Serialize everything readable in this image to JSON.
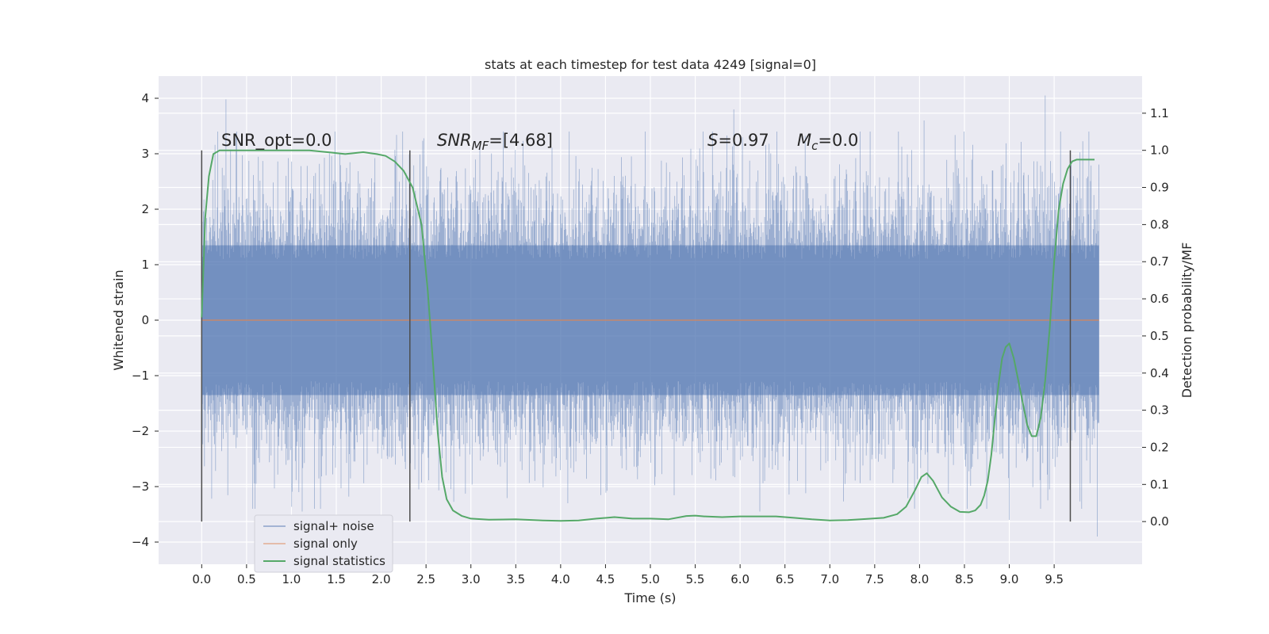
{
  "chart_data": {
    "type": "line",
    "title": "stats at each timestep for test data 4249 [signal=0]",
    "xlabel": "Time (s)",
    "ylabel": "Whitened strain",
    "y2label": "Detection probability/MF",
    "xlim": [
      -0.48,
      10.48
    ],
    "ylim": [
      -4.4,
      4.4
    ],
    "y2lim": [
      -0.115,
      1.2
    ],
    "x_ticks": [
      "0.0",
      "0.5",
      "1.0",
      "1.5",
      "2.0",
      "2.5",
      "3.0",
      "3.5",
      "4.0",
      "4.5",
      "5.0",
      "5.5",
      "6.0",
      "6.5",
      "7.0",
      "7.5",
      "8.0",
      "8.5",
      "9.0",
      "9.5"
    ],
    "y_ticks": [
      "4",
      "3",
      "2",
      "1",
      "0",
      "−1",
      "−2",
      "−3",
      "−4"
    ],
    "y2_ticks": [
      "1.1",
      "1.0",
      "0.9",
      "0.8",
      "0.7",
      "0.6",
      "0.5",
      "0.4",
      "0.3",
      "0.2",
      "0.1",
      "0.0"
    ],
    "grid": true,
    "legend_position": "lower-left",
    "colors": {
      "background": "#eaeaf2",
      "grid": "#ffffff",
      "noise": "#4c72b0",
      "signal_only": "#dd8452",
      "statistics": "#55a868",
      "marker_lines": "#4d4d4d"
    },
    "annotations": {
      "snr_opt": "SNR_opt=0.0",
      "snr_mf_symbol": "SNR",
      "snr_mf_sub": "MF",
      "snr_mf_value": "=[4.68]",
      "s_symbol": "S",
      "s_value": "=0.97",
      "mc_symbol": "M",
      "mc_sub": "c",
      "mc_value": "=0.0"
    },
    "vertical_markers_x": [
      0.0,
      2.32,
      9.68
    ],
    "marker_range_y2": [
      0.0,
      1.0
    ],
    "series": [
      {
        "name": "signal+ noise",
        "color": "#4c72b0",
        "x_range": [
          0.0,
          10.0
        ],
        "band": [
          -1.35,
          1.35
        ],
        "sample_extremes": [
          {
            "x": 0.27,
            "y": 3.98
          },
          {
            "x": 1.12,
            "y": -3.45
          },
          {
            "x": 4.08,
            "y": -3.3
          },
          {
            "x": 5.93,
            "y": 3.8
          },
          {
            "x": 6.22,
            "y": -3.45
          },
          {
            "x": 8.05,
            "y": 3.6
          },
          {
            "x": 9.0,
            "y": -3.6
          },
          {
            "x": 9.4,
            "y": 4.05
          },
          {
            "x": 9.98,
            "y": -3.9
          }
        ]
      },
      {
        "name": "signal only",
        "color": "#dd8452",
        "x": [
          0.0,
          10.0
        ],
        "y": [
          0.0,
          0.0
        ]
      },
      {
        "name": "signal statistics",
        "color": "#55a868",
        "axis": "right",
        "x": [
          0.0,
          0.04,
          0.08,
          0.13,
          0.2,
          0.3,
          0.5,
          0.8,
          1.0,
          1.2,
          1.4,
          1.6,
          1.8,
          1.95,
          2.05,
          2.15,
          2.25,
          2.35,
          2.45,
          2.52,
          2.58,
          2.63,
          2.68,
          2.73,
          2.8,
          2.9,
          3.0,
          3.2,
          3.5,
          3.8,
          4.0,
          4.2,
          4.4,
          4.6,
          4.8,
          5.0,
          5.2,
          5.4,
          5.5,
          5.6,
          5.8,
          6.0,
          6.2,
          6.4,
          6.6,
          6.8,
          7.0,
          7.2,
          7.4,
          7.6,
          7.75,
          7.85,
          7.95,
          8.02,
          8.08,
          8.15,
          8.25,
          8.35,
          8.45,
          8.55,
          8.62,
          8.68,
          8.72,
          8.76,
          8.8,
          8.84,
          8.88,
          8.92,
          8.96,
          9.0,
          9.05,
          9.1,
          9.15,
          9.2,
          9.25,
          9.3,
          9.35,
          9.4,
          9.45,
          9.5,
          9.55,
          9.6,
          9.65,
          9.7,
          9.75,
          9.8,
          9.85,
          9.9,
          9.95
        ],
        "y": [
          0.55,
          0.82,
          0.93,
          0.99,
          1.0,
          1.0,
          1.0,
          1.0,
          1.0,
          1.0,
          0.995,
          0.99,
          0.995,
          0.99,
          0.985,
          0.97,
          0.945,
          0.9,
          0.8,
          0.62,
          0.42,
          0.24,
          0.12,
          0.06,
          0.03,
          0.015,
          0.008,
          0.005,
          0.006,
          0.003,
          0.002,
          0.003,
          0.008,
          0.012,
          0.008,
          0.008,
          0.006,
          0.015,
          0.016,
          0.014,
          0.012,
          0.014,
          0.014,
          0.014,
          0.01,
          0.006,
          0.003,
          0.004,
          0.007,
          0.01,
          0.02,
          0.04,
          0.085,
          0.12,
          0.13,
          0.11,
          0.065,
          0.04,
          0.026,
          0.025,
          0.03,
          0.045,
          0.07,
          0.11,
          0.18,
          0.28,
          0.37,
          0.44,
          0.47,
          0.48,
          0.44,
          0.38,
          0.32,
          0.26,
          0.23,
          0.23,
          0.28,
          0.38,
          0.52,
          0.7,
          0.84,
          0.91,
          0.95,
          0.97,
          0.975,
          0.975,
          0.975,
          0.975,
          0.975
        ]
      }
    ]
  }
}
